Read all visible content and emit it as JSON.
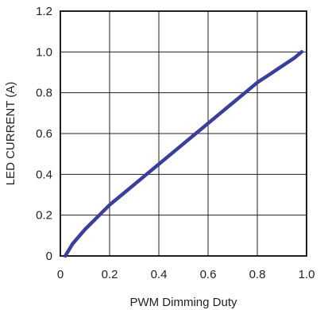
{
  "chart_data": {
    "type": "line",
    "title": "",
    "xlabel": "PWM Dimming Duty",
    "ylabel": "LED CURRENT (A)",
    "xlim": [
      0,
      1.0
    ],
    "ylim": [
      0,
      1.2
    ],
    "xticks": [
      "0",
      "0.2",
      "0.4",
      "0.6",
      "0.8",
      "1.0"
    ],
    "yticks": [
      "0",
      "0.2",
      "0.4",
      "0.6",
      "0.8",
      "1.0",
      "1.2"
    ],
    "grid": true,
    "series": [
      {
        "color": "#3a3f99",
        "x": [
          0.02,
          0.05,
          0.1,
          0.15,
          0.2,
          0.25,
          0.3,
          0.35,
          0.4,
          0.45,
          0.5,
          0.55,
          0.6,
          0.65,
          0.7,
          0.75,
          0.8,
          0.85,
          0.9,
          0.95,
          0.98
        ],
        "y": [
          0.0,
          0.06,
          0.13,
          0.19,
          0.25,
          0.3,
          0.35,
          0.4,
          0.45,
          0.5,
          0.55,
          0.6,
          0.65,
          0.7,
          0.75,
          0.8,
          0.85,
          0.89,
          0.93,
          0.97,
          1.0
        ]
      }
    ]
  }
}
